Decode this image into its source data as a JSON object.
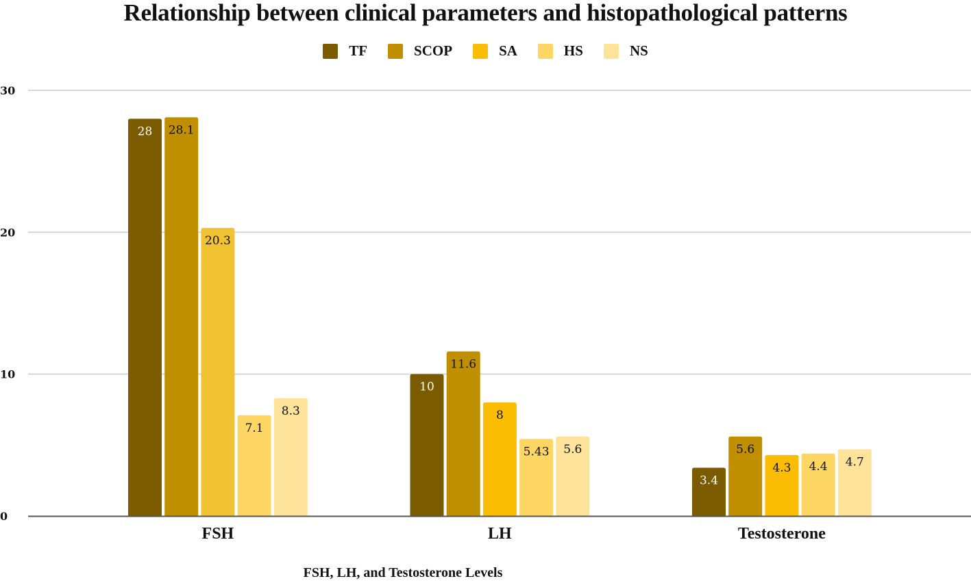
{
  "chart_data": {
    "type": "bar",
    "title": "Relationship between clinical parameters and histopathological patterns",
    "xlabel": "FSH, LH, and Testosterone Levels",
    "ylabel": "",
    "categories": [
      "FSH",
      "LH",
      "Testosterone"
    ],
    "ylim": [
      0,
      30
    ],
    "yticks": [
      "0",
      "10",
      "20",
      "30"
    ],
    "ytick_values": [
      0,
      10,
      20,
      30
    ],
    "grid": true,
    "legend_position": "top-center",
    "series": [
      {
        "name": "TF",
        "color": "#7A5B00",
        "label_color": "#ffffff",
        "values": [
          28,
          10,
          3.4
        ],
        "labels": [
          "28",
          "10",
          "3.4"
        ]
      },
      {
        "name": "SCOP",
        "color": "#BF8F00",
        "label_color": "#111111",
        "values": [
          28.1,
          11.6,
          5.6
        ],
        "labels": [
          "28.1",
          "11.6",
          "5.6"
        ]
      },
      {
        "name": "SA",
        "color": "#FBBC04",
        "label_color": "#111111",
        "values": [
          20.3,
          8,
          4.3
        ],
        "labels": [
          "20.3",
          "8",
          "4.3"
        ],
        "point_colors": [
          "#F1C232",
          "#FBBC04",
          "#FBBC04"
        ]
      },
      {
        "name": "HS",
        "color": "#FDD663",
        "label_color": "#111111",
        "values": [
          7.1,
          5.43,
          4.4
        ],
        "labels": [
          "7.1",
          "5.43",
          "4.4"
        ]
      },
      {
        "name": "NS",
        "color": "#FEE49A",
        "label_color": "#111111",
        "values": [
          8.3,
          5.6,
          4.7
        ],
        "labels": [
          "8.3",
          "5.6",
          "4.7"
        ]
      }
    ]
  }
}
